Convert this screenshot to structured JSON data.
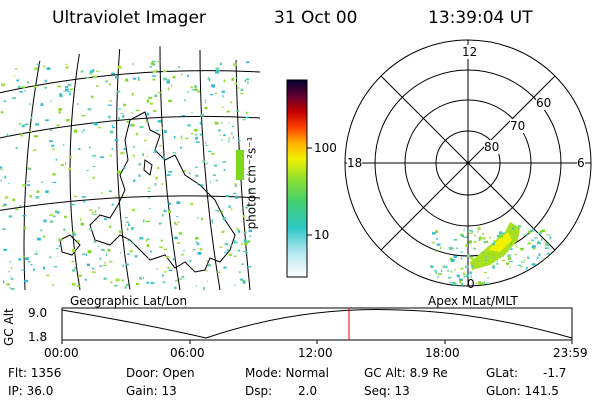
{
  "header": {
    "title": "Ultraviolet Imager",
    "date": "31 Oct 00",
    "time": "13:39:04 UT"
  },
  "colorbar": {
    "unit_label": "photon cm⁻²s⁻¹",
    "ticks": [
      "100",
      "10"
    ]
  },
  "polar": {
    "mlt_labels": {
      "top": "12",
      "left": "18",
      "right": "6",
      "bottom": "0"
    },
    "lat_labels": [
      "60",
      "70",
      "80"
    ]
  },
  "map_labels": {
    "left": "Geographic Lat/Lon",
    "right": "Apex MLat/MLT"
  },
  "altitude_panel": {
    "axis_label": "GC Alt",
    "y_ticks": [
      "9.0",
      "1.8"
    ],
    "x_ticks": [
      "00:00",
      "06:00",
      "12:00",
      "18:00",
      "23:59"
    ],
    "current_time_marker": "13:39",
    "marker_color": "#e00000"
  },
  "info": {
    "flt": "Flt: 1356",
    "ip": "IP: 36.0",
    "door": "Door: Open",
    "gain": "Gain: 13",
    "mode": "Mode: Normal",
    "dsp_label": "Dsp:",
    "dsp_value": "2.0",
    "gc_alt": "GC Alt: 8.9 Re",
    "seq": "Seq: 13",
    "glat_label": "GLat:",
    "glat_value": "-1.7",
    "glon": "GLon: 141.5"
  },
  "icons": {
    "globe": "earth-globe-image",
    "polar": "polar-aurora-plot"
  }
}
